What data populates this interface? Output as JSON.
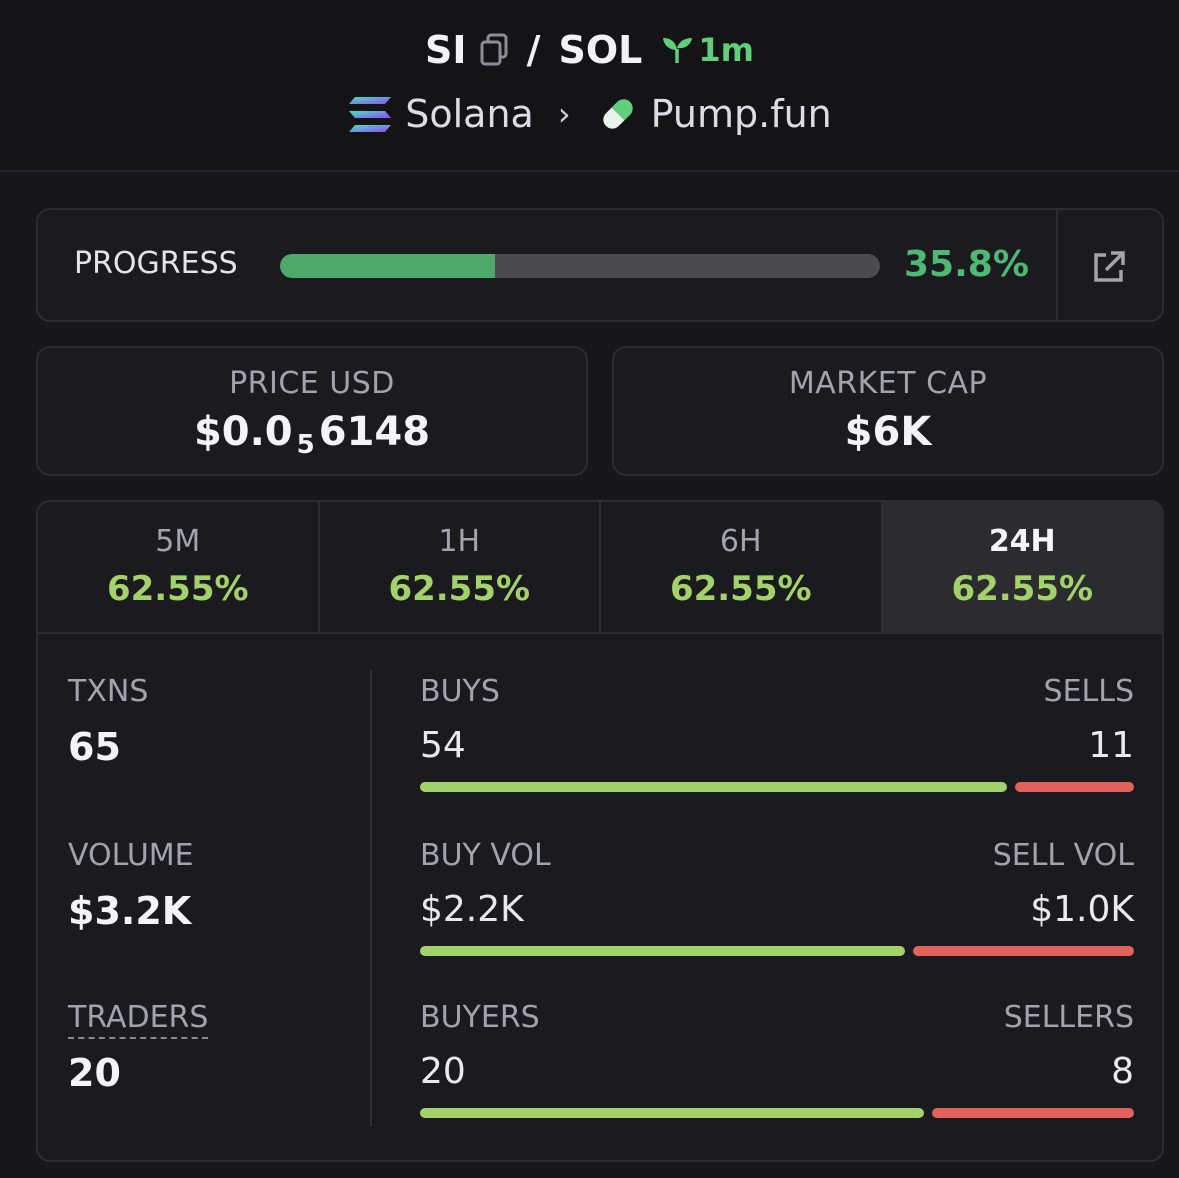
{
  "header": {
    "symbol": "SI",
    "separator": "/",
    "quote": "SOL",
    "age": "1m",
    "chain": "Solana",
    "dex": "Pump.fun"
  },
  "progress": {
    "label": "PROGRESS",
    "value_text": "35.8%",
    "fraction": 0.358
  },
  "price": {
    "label": "PRICE USD",
    "prefix": "$0.0",
    "zeros": "5",
    "digits": "6148"
  },
  "market_cap": {
    "label": "MARKET CAP",
    "value": "$6K"
  },
  "tabs": [
    {
      "label": "5M",
      "change": "62.55%"
    },
    {
      "label": "1H",
      "change": "62.55%"
    },
    {
      "label": "6H",
      "change": "62.55%"
    },
    {
      "label": "24H",
      "change": "62.55%"
    }
  ],
  "metrics": {
    "txns": {
      "label": "TXNS",
      "value": "65"
    },
    "volume": {
      "label": "VOLUME",
      "value": "$3.2K"
    },
    "traders": {
      "label": "TRADERS",
      "value": "20"
    }
  },
  "breakdown": {
    "txns": {
      "left_label": "BUYS",
      "right_label": "SELLS",
      "left_value": "54",
      "right_value": "11",
      "buy_fraction": 0.8308
    },
    "volume": {
      "left_label": "BUY VOL",
      "right_label": "SELL VOL",
      "left_value": "$2.2K",
      "right_value": "$1.0K",
      "buy_fraction": 0.6875
    },
    "traders": {
      "left_label": "BUYERS",
      "right_label": "SELLERS",
      "left_value": "20",
      "right_value": "8",
      "buy_fraction": 0.7143
    }
  },
  "colors": {
    "positive": "#a3d16a",
    "negative": "#e0625b",
    "progress": "#4ea86a",
    "accent_green": "#5fcf7a"
  }
}
